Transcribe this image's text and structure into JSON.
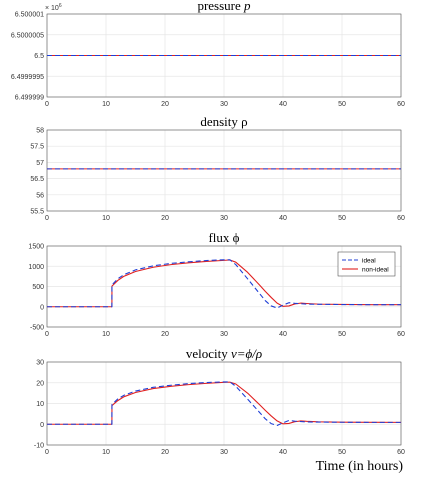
{
  "figure": {
    "xlabel": "Time (in hours)"
  },
  "legend": {
    "placement": "top-right of flux panel"
  },
  "colors": {
    "ideal": "#1f3fd6",
    "non_ideal": "#e02020",
    "grid": "#e6e6e6",
    "axis": "#555555"
  },
  "chart_data": [
    {
      "type": "line",
      "title_text": "pressure ",
      "title_symbol": "p",
      "exponent_label": "× 10",
      "exponent_value": "6",
      "xlim": [
        0,
        60
      ],
      "ylim": [
        6.499999,
        6.500001
      ],
      "xticks": [
        "0",
        "10",
        "20",
        "30",
        "40",
        "50",
        "60"
      ],
      "yticks": [
        6.499999,
        6.4999995,
        6.5,
        6.5000005,
        6.500001
      ],
      "ytick_labels": [
        "6.499999",
        "6.4999995",
        "6.5",
        "6.5000005",
        "6.500001"
      ],
      "grid": true,
      "series": [
        {
          "name": "ideal",
          "x": [
            0,
            60
          ],
          "y": [
            6.5,
            6.5
          ]
        },
        {
          "name": "non-ideal",
          "x": [
            0,
            60
          ],
          "y": [
            6.5,
            6.5
          ]
        }
      ]
    },
    {
      "type": "line",
      "title_text": "density ρ",
      "xlim": [
        0,
        60
      ],
      "ylim": [
        55.5,
        58
      ],
      "xticks": [
        "0",
        "10",
        "20",
        "30",
        "40",
        "50",
        "60"
      ],
      "yticks": [
        55.5,
        56,
        56.5,
        57,
        57.5,
        58
      ],
      "ytick_labels": [
        "55.5",
        "56",
        "56.5",
        "57",
        "57.5",
        "58"
      ],
      "grid": true,
      "series": [
        {
          "name": "ideal",
          "x": [
            0,
            60
          ],
          "y": [
            56.8,
            56.8
          ]
        },
        {
          "name": "non-ideal",
          "x": [
            0,
            60
          ],
          "y": [
            56.8,
            56.8
          ]
        }
      ]
    },
    {
      "type": "line",
      "title_text": "flux ϕ",
      "xlim": [
        0,
        60
      ],
      "ylim": [
        -500,
        1500
      ],
      "xticks": [
        "0",
        "10",
        "20",
        "30",
        "40",
        "50",
        "60"
      ],
      "yticks": [
        -500,
        0,
        500,
        1000,
        1500
      ],
      "ytick_labels": [
        "-500",
        "0",
        "500",
        "1000",
        "1500"
      ],
      "grid": true,
      "show_legend": true,
      "series": [
        {
          "name": "ideal",
          "x": [
            0,
            11,
            11.01,
            12,
            13,
            15,
            18,
            21,
            24,
            27,
            30,
            31,
            32,
            34,
            36,
            37,
            38,
            39,
            40,
            41,
            42,
            44,
            46,
            50,
            55,
            60
          ],
          "y": [
            0,
            0,
            540,
            690,
            790,
            910,
            1010,
            1070,
            1110,
            1140,
            1160,
            1160,
            1040,
            690,
            330,
            150,
            20,
            -30,
            40,
            100,
            85,
            65,
            60,
            55,
            50,
            50
          ]
        },
        {
          "name": "non-ideal",
          "x": [
            0,
            11,
            11.01,
            12,
            13,
            15,
            18,
            21,
            24,
            27,
            30,
            31,
            32,
            34,
            36,
            37,
            38,
            39,
            40,
            41,
            42,
            43,
            44,
            46,
            50,
            55,
            60
          ],
          "y": [
            0,
            0,
            510,
            650,
            750,
            870,
            975,
            1040,
            1085,
            1120,
            1145,
            1155,
            1100,
            850,
            540,
            380,
            230,
            90,
            10,
            20,
            70,
            90,
            80,
            65,
            58,
            52,
            50
          ]
        }
      ]
    },
    {
      "type": "line",
      "title_text": "velocity  ",
      "title_symbol": "v=ϕ/ρ",
      "xlim": [
        0,
        60
      ],
      "ylim": [
        -10,
        30
      ],
      "xticks": [
        "0",
        "10",
        "20",
        "30",
        "40",
        "50",
        "60"
      ],
      "yticks": [
        -10,
        0,
        10,
        20,
        30
      ],
      "ytick_labels": [
        "-10",
        "0",
        "10",
        "20",
        "30"
      ],
      "grid": true,
      "series": [
        {
          "name": "ideal",
          "x": [
            0,
            11,
            11.01,
            12,
            13,
            15,
            18,
            21,
            24,
            27,
            30,
            31,
            32,
            34,
            36,
            37,
            38,
            39,
            40,
            41,
            42,
            44,
            46,
            50,
            55,
            60
          ],
          "y": [
            0,
            0,
            9.5,
            12.2,
            13.9,
            16,
            17.8,
            18.8,
            19.6,
            20.1,
            20.4,
            20.4,
            18.3,
            12.1,
            5.8,
            2.6,
            0.3,
            -0.6,
            0.7,
            1.8,
            1.5,
            1.1,
            1.05,
            0.97,
            0.9,
            0.9
          ]
        },
        {
          "name": "non-ideal",
          "x": [
            0,
            11,
            11.01,
            12,
            13,
            15,
            18,
            21,
            24,
            27,
            30,
            31,
            32,
            34,
            36,
            37,
            38,
            39,
            40,
            41,
            42,
            43,
            44,
            46,
            50,
            55,
            60
          ],
          "y": [
            0,
            0,
            9,
            11.4,
            13.2,
            15.3,
            17.2,
            18.3,
            19.1,
            19.7,
            20.2,
            20.3,
            19.4,
            15,
            9.5,
            6.7,
            4,
            1.6,
            0.2,
            0.4,
            1.2,
            1.6,
            1.4,
            1.15,
            1,
            0.92,
            0.9
          ]
        }
      ]
    }
  ]
}
